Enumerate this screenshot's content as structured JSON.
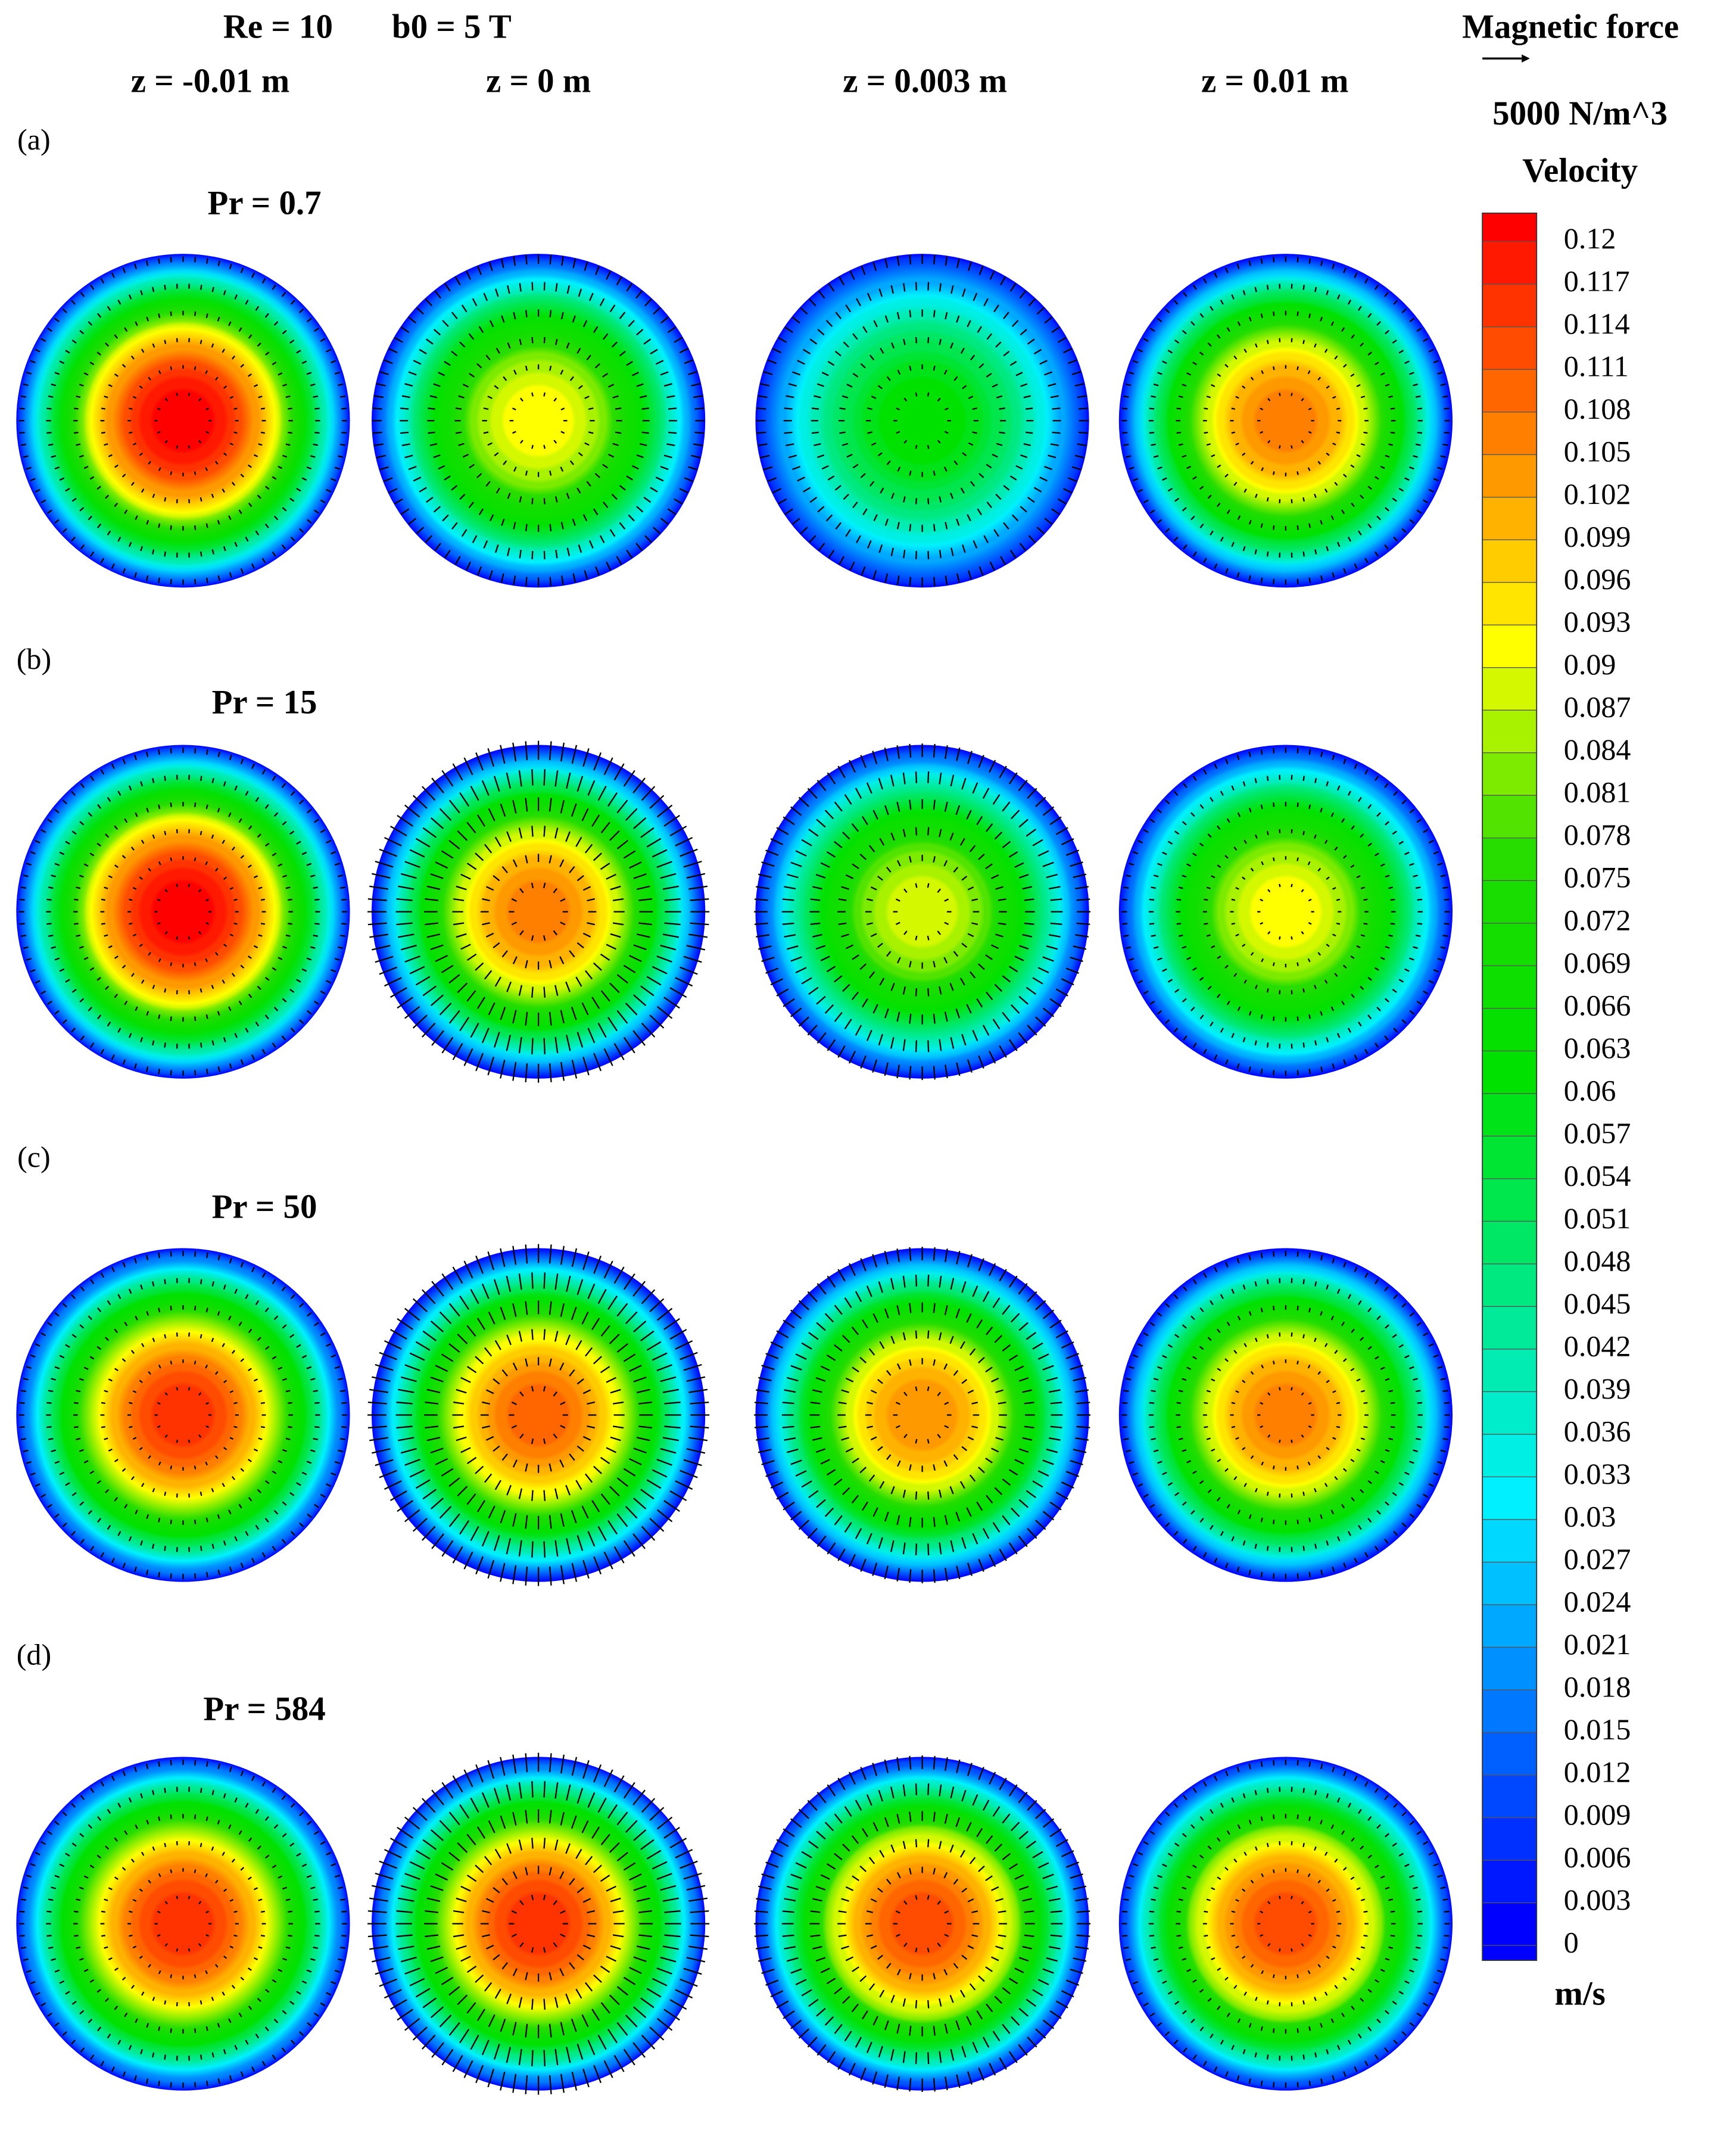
{
  "chart_data": {
    "type": "contour",
    "header": {
      "re": "Re = 10",
      "b0": "b0 = 5 T"
    },
    "columns": [
      "z = -0.01 m",
      "z = 0 m",
      "z = 0.003 m",
      "z = 0.01 m"
    ],
    "rows": [
      {
        "label": "(a)",
        "title": "Pr = 0.7",
        "peak_values": [
          0.12,
          0.09,
          0.06,
          0.105
        ]
      },
      {
        "label": "(b)",
        "title": "Pr = 15",
        "peak_values": [
          0.12,
          0.105,
          0.087,
          0.09
        ]
      },
      {
        "label": "(c)",
        "title": "Pr = 50",
        "peak_values": [
          0.114,
          0.108,
          0.102,
          0.105
        ]
      },
      {
        "label": "(d)",
        "title": "Pr = 584",
        "peak_values": [
          0.114,
          0.114,
          0.111,
          0.111
        ]
      }
    ],
    "vector_legend": {
      "title": "Magnetic force",
      "scale": "5000 N/m^3"
    },
    "colorbar": {
      "title": "Velocity",
      "unit": "m/s",
      "ylim": [
        0,
        0.12
      ],
      "ticks": [
        0.12,
        0.117,
        0.114,
        0.111,
        0.108,
        0.105,
        0.102,
        0.099,
        0.096,
        0.093,
        0.09,
        0.087,
        0.084,
        0.081,
        0.078,
        0.075,
        0.072,
        0.069,
        0.066,
        0.063,
        0.06,
        0.057,
        0.054,
        0.051,
        0.048,
        0.045,
        0.042,
        0.039,
        0.036,
        0.033,
        0.03,
        0.027,
        0.024,
        0.021,
        0.018,
        0.015,
        0.012,
        0.009,
        0.006,
        0.003,
        0
      ]
    }
  }
}
